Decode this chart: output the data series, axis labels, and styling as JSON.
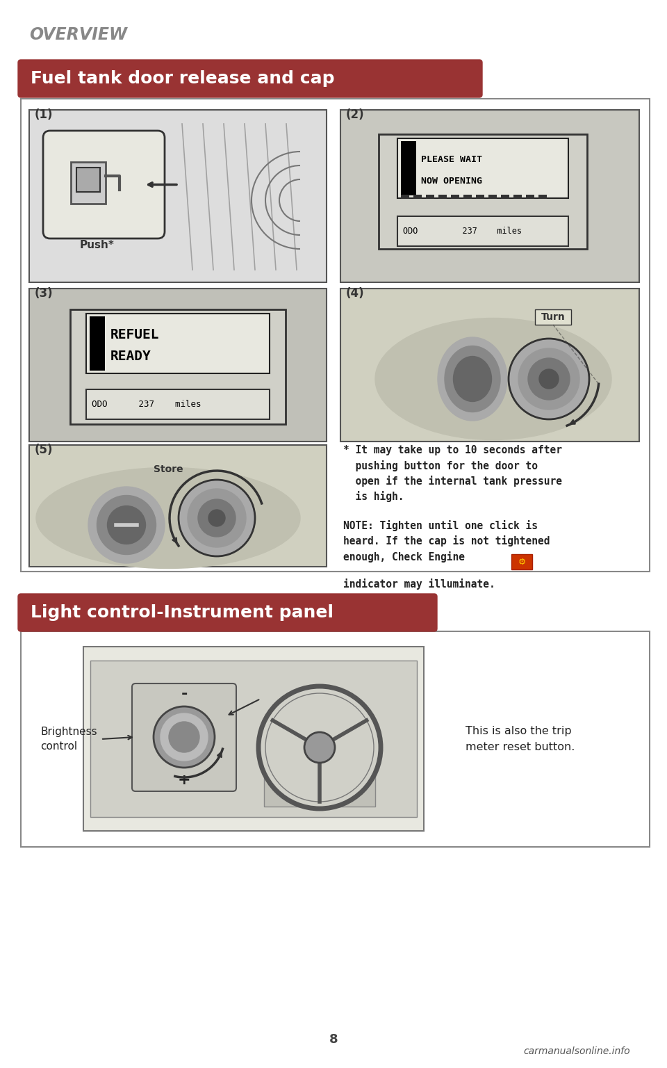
{
  "bg_color": "#ffffff",
  "overview_text": "OVERVIEW",
  "overview_color": "#888888",
  "section1_title": "Fuel tank door release and cap",
  "section1_title_bg": "#993333",
  "section1_title_color": "#ffffff",
  "section2_title": "Light control-Instrument panel",
  "section2_title_bg": "#993333",
  "section2_title_color": "#ffffff",
  "outer_panel_bg": "#ffffff",
  "outer_panel_border": "#666666",
  "panel1_bg": "#dddddd",
  "panel2_bg": "#cccccc",
  "panel3_bg": "#bbbbbb",
  "display_bg": "#d8d8d8",
  "display_inner_bg": "#e8e8e0",
  "note_text1": "* It may take up to 10 seconds after\n  pushing button for the door to\n  open if the internal tank pressure\n  is high.",
  "note_text2": "NOTE: Tighten until one click is\nheard. If the cap is not tightened\nenough, Check Engine",
  "note_text3": "indicator may illuminate.",
  "label_push": "Push*",
  "label_store": "Store",
  "label_turn": "Turn",
  "label_1": "(1)",
  "label_2": "(2)",
  "label_3": "(3)",
  "label_4": "(4)",
  "label_5": "(5)",
  "display_line1a": "PLEASE WAIT",
  "display_line1b": "NOW OPENING",
  "display_line2a": "REFUEL",
  "display_line2b": "READY",
  "odo_text": "ODO         237    miles",
  "brightness_label": "Brightness\ncontrol",
  "trip_text": "This is also the trip\nmeter reset button.",
  "footer_text": "8",
  "footer_url": "carmanualsonline.info",
  "note_color": "#222222",
  "label_color": "#333333"
}
